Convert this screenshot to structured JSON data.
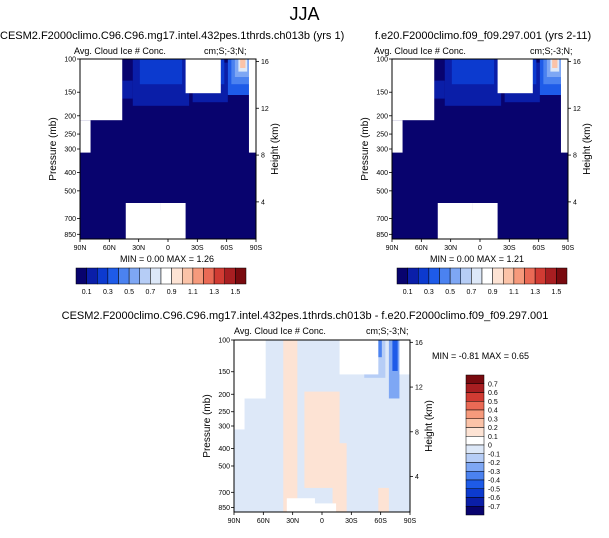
{
  "figure": {
    "title": "JJA"
  },
  "colors": {
    "cmap_levels_abs": [
      "#08036e",
      "#0a1ea8",
      "#0c3acf",
      "#1e5be8",
      "#4b82f0",
      "#7ea7f4",
      "#b6cdf6",
      "#dde8f8",
      "#ffffff",
      "#fde3d4",
      "#fbc3a8",
      "#f69a7c",
      "#ea6a55",
      "#d13b33",
      "#a81e21",
      "#790a0f"
    ],
    "cmap_levels_diff": [
      "#08036e",
      "#0a1ea8",
      "#0c3acf",
      "#1e5be8",
      "#4b82f0",
      "#7ea7f4",
      "#b6cdf6",
      "#dde8f8",
      "#ffffff",
      "#fde3d4",
      "#fbc3a8",
      "#f69a7c",
      "#ea6a55",
      "#d13b33",
      "#a81e21",
      "#790a0f"
    ]
  },
  "chart_data": [
    {
      "type": "heatmap",
      "title": "CESM2.F2000climo.C96.C96.mg17.intel.432pes.1thrds.ch013b (yrs 1)",
      "left_label": "Avg. Cloud Ice # Conc.",
      "right_label": "cm;S;-3;N;",
      "ylabel": "Pressure (mb)",
      "ylabel_right": "Height (km)",
      "xticks": [
        "90N",
        "60N",
        "30N",
        "0",
        "30S",
        "60S",
        "90S"
      ],
      "yticks": [
        "100",
        "150",
        "200",
        "250",
        "300",
        "400",
        "500",
        "700",
        "850"
      ],
      "yticks_right": [
        "16",
        "12",
        "8",
        "4"
      ],
      "min_max": "MIN =   0.00  MAX =    1.26",
      "colorbar_labels": [
        "0.1",
        "0.3",
        "0.5",
        "0.7",
        "0.9",
        "1.1",
        "1.3",
        "1.5"
      ]
    },
    {
      "type": "heatmap",
      "title": "f.e20.F2000climo.f09_f09.297.001 (yrs 2-11)",
      "left_label": "Avg. Cloud Ice # Conc.",
      "right_label": "cm;S;-3;N;",
      "ylabel": "Pressure (mb)",
      "ylabel_right": "Height (km)",
      "xticks": [
        "90N",
        "60N",
        "30N",
        "0",
        "30S",
        "60S",
        "90S"
      ],
      "yticks": [
        "100",
        "150",
        "200",
        "250",
        "300",
        "400",
        "500",
        "700",
        "850"
      ],
      "yticks_right": [
        "16",
        "12",
        "8",
        "4"
      ],
      "min_max": "MIN =   0.00  MAX =    1.21",
      "colorbar_labels": [
        "0.1",
        "0.3",
        "0.5",
        "0.7",
        "0.9",
        "1.1",
        "1.3",
        "1.5"
      ]
    },
    {
      "type": "heatmap",
      "title": "CESM2.F2000climo.C96.C96.mg17.intel.432pes.1thrds.ch013b - f.e20.F2000climo.f09_f09.297.001",
      "left_label": "Avg. Cloud Ice # Conc.",
      "right_label": "cm;S;-3;N;",
      "ylabel": "Pressure (mb)",
      "ylabel_right": "Height (km)",
      "xticks": [
        "90N",
        "60N",
        "30N",
        "0",
        "30S",
        "60S",
        "90S"
      ],
      "yticks": [
        "100",
        "150",
        "200",
        "250",
        "300",
        "400",
        "500",
        "700",
        "850"
      ],
      "yticks_right": [
        "16",
        "12",
        "8",
        "4"
      ],
      "min_max": "MIN = -0.81  MAX =   0.65",
      "colorbar_labels": [
        "0.7",
        "0.6",
        "0.5",
        "0.4",
        "0.3",
        "0.2",
        "0.1",
        "0",
        "-0.1",
        "-0.2",
        "-0.3",
        "-0.4",
        "-0.5",
        "-0.6",
        "-0.7"
      ]
    }
  ]
}
